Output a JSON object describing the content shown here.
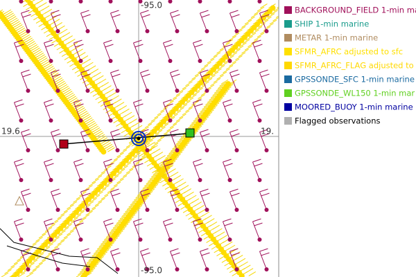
{
  "map": {
    "labels": {
      "lon_top": "-95.0",
      "lon_bottom": "-95.0",
      "lat_left": "19.6",
      "lat_right": "19."
    }
  },
  "legend": [
    {
      "label": "BACKGROUND_FIELD 1-min ma",
      "color": "#a0105a"
    },
    {
      "label": "SHIP 1-min marine",
      "color": "#1a9c8c"
    },
    {
      "label": "METAR 1-min marine",
      "color": "#b08c60"
    },
    {
      "label": "SFMR_AFRC adjusted to sfc",
      "color": "#ffe000"
    },
    {
      "label": "SFMR_AFRC_FLAG adjusted to",
      "color": "#ffd800"
    },
    {
      "label": "GPSSONDE_SFC 1-min marine",
      "color": "#1a6aa0"
    },
    {
      "label": "GPSSONDE_WL150 1-min mar",
      "color": "#60d020"
    },
    {
      "label": "MOORED_BUOY 1-min marine",
      "color": "#0000a0"
    },
    {
      "label": "Flagged observations",
      "color": "#b0b0b0"
    }
  ]
}
